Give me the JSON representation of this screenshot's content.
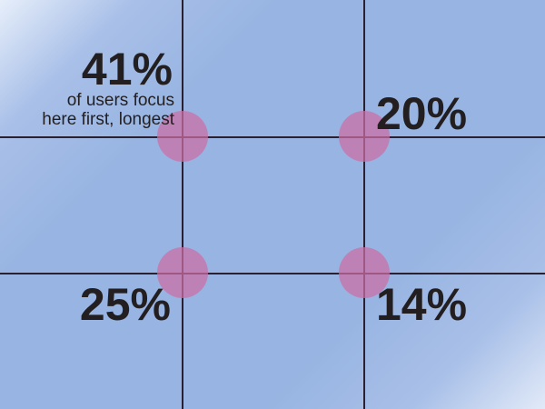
{
  "quadrants": {
    "top_left": {
      "percent": "41%",
      "caption_line1": "of users focus",
      "caption_line2": "here first, longest"
    },
    "top_right": {
      "percent": "20%"
    },
    "bottom_left": {
      "percent": "25%"
    },
    "bottom_right": {
      "percent": "14%"
    }
  },
  "colors": {
    "background": "#97b4e2",
    "grid_lines": "#2a2030",
    "focus_circles": "#cd6ea5"
  }
}
